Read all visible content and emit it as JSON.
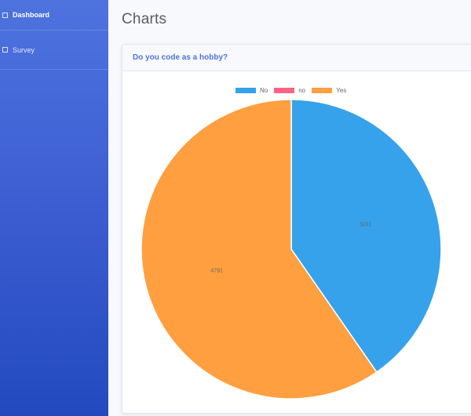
{
  "sidebar": {
    "items": [
      {
        "label": "Dashboard"
      },
      {
        "label": "Survey"
      }
    ]
  },
  "page_title": "Charts",
  "card": {
    "title": "Do you code as a hobby?"
  },
  "chart_data": {
    "type": "pie",
    "title": "",
    "legend_position": "top",
    "categories": [
      "No",
      "no",
      "Yes"
    ],
    "values": [
      3241,
      0,
      4791
    ],
    "colors": [
      "#36a2eb",
      "#ff6384",
      "#ff9f40"
    ],
    "labels_shown": [
      "3241",
      "",
      "4791"
    ]
  }
}
